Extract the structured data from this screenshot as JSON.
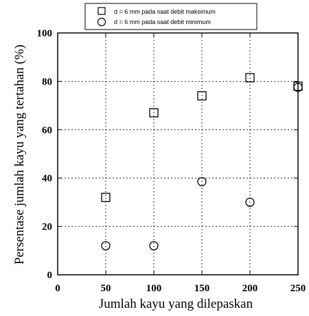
{
  "chart_data": {
    "type": "scatter",
    "xlabel": "Jumlah kayu yang dilepaskan",
    "ylabel": "Persentase jumlah kayu yang tertahan (%)",
    "xlim": [
      0,
      250
    ],
    "ylim": [
      0,
      100
    ],
    "x_ticks": [
      "0",
      "50",
      "100",
      "150",
      "200",
      "250"
    ],
    "y_ticks": [
      "0",
      "20",
      "40",
      "60",
      "80",
      "100"
    ],
    "grid": "dotted",
    "legend_position": "top",
    "series": [
      {
        "name": "d = 6 mm pada saat debit maksimum",
        "marker": "square",
        "points": [
          {
            "x": 50,
            "y": 32
          },
          {
            "x": 100,
            "y": 67
          },
          {
            "x": 150,
            "y": 74
          },
          {
            "x": 200,
            "y": 81.5
          },
          {
            "x": 250,
            "y": 78
          }
        ]
      },
      {
        "name": "d = 6 mm pada saat debit minimum",
        "marker": "circle",
        "points": [
          {
            "x": 50,
            "y": 12
          },
          {
            "x": 100,
            "y": 12
          },
          {
            "x": 150,
            "y": 38.5
          },
          {
            "x": 200,
            "y": 30
          },
          {
            "x": 250,
            "y": 77.5
          }
        ]
      }
    ]
  }
}
